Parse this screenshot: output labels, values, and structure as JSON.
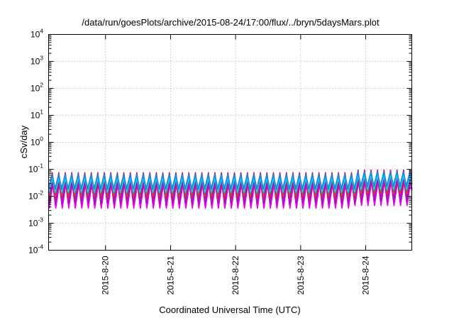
{
  "chart_data": {
    "type": "line",
    "title": "/data/run/goesPlots/archive/2015-08-24/17:00/flux/../bryn/5daysMars.plot",
    "xlabel": "Coordinated Universal Time (UTC)",
    "ylabel": "cSv/day",
    "y_scale": "log",
    "ylim": [
      0.0001,
      10000
    ],
    "y_ticks": [
      {
        "value": 0.0001,
        "base": "10",
        "exp": "-4"
      },
      {
        "value": 0.001,
        "base": "10",
        "exp": "-3"
      },
      {
        "value": 0.01,
        "base": "10",
        "exp": "-2"
      },
      {
        "value": 0.1,
        "base": "10",
        "exp": "-1"
      },
      {
        "value": 1,
        "base": "10",
        "exp": "0"
      },
      {
        "value": 10,
        "base": "10",
        "exp": "1"
      },
      {
        "value": 100,
        "base": "10",
        "exp": "2"
      },
      {
        "value": 1000,
        "base": "10",
        "exp": "3"
      },
      {
        "value": 10000,
        "base": "10",
        "exp": "4"
      }
    ],
    "xlim": [
      "2015-08-19T03:00",
      "2015-08-24T17:00"
    ],
    "x_ticks": [
      {
        "value": "2015-08-20T00:00",
        "label": "2015-8-20"
      },
      {
        "value": "2015-08-21T00:00",
        "label": "2015-8-21"
      },
      {
        "value": "2015-08-22T00:00",
        "label": "2015-8-22"
      },
      {
        "value": "2015-08-23T00:00",
        "label": "2015-8-23"
      },
      {
        "value": "2015-08-24T00:00",
        "label": "2015-8-24"
      }
    ],
    "grid": true,
    "pattern": {
      "period_hours": 2.4,
      "ramp_fraction": 0.55,
      "jump_at": "2015-08-23T20:00",
      "jump_factor": 1.25
    },
    "series": [
      {
        "color": "#ff00ff",
        "peak": 0.032,
        "trough": 0.004,
        "phase_hours": 0.2
      },
      {
        "color": "#ee00ee",
        "peak": 0.028,
        "trough": 0.0036,
        "phase_hours": 0.25
      },
      {
        "color": "#cc00cc",
        "peak": 0.036,
        "trough": 0.0052,
        "phase_hours": 0.18
      },
      {
        "color": "#7b1fa2",
        "peak": 0.04,
        "trough": 0.0062,
        "phase_hours": 0.12
      },
      {
        "color": "#9c27b0",
        "peak": 0.045,
        "trough": 0.007,
        "phase_hours": 0.1
      },
      {
        "color": "#e0004a",
        "peak": 0.075,
        "trough": 0.0092,
        "phase_hours": 0.04
      },
      {
        "color": "#ff2a2a",
        "peak": 0.068,
        "trough": 0.0098,
        "phase_hours": 0.05
      },
      {
        "color": "#2e8b57",
        "peak": 0.052,
        "trough": 0.0125,
        "phase_hours": 0.07
      },
      {
        "color": "#26c6b0",
        "peak": 0.05,
        "trough": 0.014,
        "phase_hours": 0.06
      },
      {
        "color": "#00e5ee",
        "peak": 0.046,
        "trough": 0.016,
        "phase_hours": 0.06
      },
      {
        "color": "#3f51b5",
        "peak": 0.066,
        "trough": 0.0185,
        "phase_hours": 0.0
      },
      {
        "color": "#1e88e5",
        "peak": 0.062,
        "trough": 0.02,
        "phase_hours": 0.0
      }
    ]
  }
}
